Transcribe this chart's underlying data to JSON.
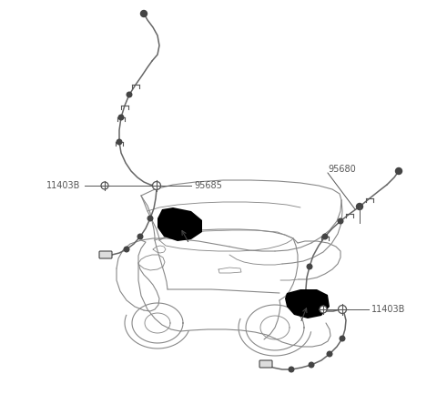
{
  "background_color": "#ffffff",
  "car_color": "#888888",
  "wire_color": "#666666",
  "label_color": "#555555",
  "figsize": [
    4.8,
    4.33
  ],
  "dpi": 100,
  "label_font_size": 7.0
}
